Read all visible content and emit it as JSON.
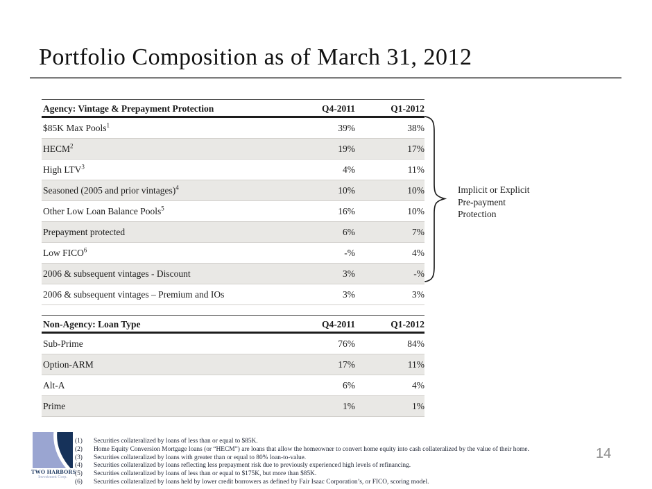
{
  "page": {
    "title": "Portfolio Composition as of March 31, 2012",
    "page_number": "14"
  },
  "tables": [
    {
      "title": "Agency: Vintage & Prepayment Protection",
      "col1": "Q4-2011",
      "col2": "Q1-2012",
      "rows": [
        {
          "label": "$85K Max Pools",
          "sup": "1",
          "q4": "39%",
          "q1": "38%"
        },
        {
          "label": "HECM",
          "sup": "2",
          "q4": "19%",
          "q1": "17%"
        },
        {
          "label": "High LTV",
          "sup": "3",
          "q4": "4%",
          "q1": "11%"
        },
        {
          "label": "Seasoned (2005 and prior vintages)",
          "sup": "4",
          "q4": "10%",
          "q1": "10%"
        },
        {
          "label": "Other Low Loan Balance Pools",
          "sup": "5",
          "q4": "16%",
          "q1": "10%"
        },
        {
          "label": "Prepayment protected",
          "sup": "",
          "q4": "6%",
          "q1": "7%"
        },
        {
          "label": "Low FICO",
          "sup": "6",
          "q4": "-%",
          "q1": "4%"
        },
        {
          "label": "2006 & subsequent vintages - Discount",
          "sup": "",
          "q4": "3%",
          "q1": "-%"
        },
        {
          "label": "2006 & subsequent vintages – Premium and IOs",
          "sup": "",
          "q4": "3%",
          "q1": "3%"
        }
      ]
    },
    {
      "title": "Non-Agency: Loan Type",
      "col1": "Q4-2011",
      "col2": "Q1-2012",
      "rows": [
        {
          "label": "Sub-Prime",
          "sup": "",
          "q4": "76%",
          "q1": "84%"
        },
        {
          "label": "Option-ARM",
          "sup": "",
          "q4": "17%",
          "q1": "11%"
        },
        {
          "label": "Alt-A",
          "sup": "",
          "q4": "6%",
          "q1": "4%"
        },
        {
          "label": "Prime",
          "sup": "",
          "q4": "1%",
          "q1": "1%"
        }
      ]
    }
  ],
  "annotation": {
    "lines": [
      "Implicit or Explicit",
      "Pre-payment",
      "Protection"
    ]
  },
  "footnotes": [
    {
      "num": "(1)",
      "text": "Securities collateralized by loans of less than or equal to $85K."
    },
    {
      "num": "(2)",
      "text": "Home Equity Conversion Mortgage loans (or “HECM”) are loans that allow the homeowner to convert home equity into cash collateralized by the value of their home."
    },
    {
      "num": "(3)",
      "text": "Securities collateralized by loans with greater than or equal to 80% loan-to-value."
    },
    {
      "num": "(4)",
      "text": "Securities collateralized by loans reflecting less prepayment risk due to previously experienced high levels of refinancing."
    },
    {
      "num": "(5)",
      "text": "Securities collateralized by loans of less than or equal to $175K, but more than $85K."
    },
    {
      "num": "(6)",
      "text": "Securities collateralized by loans held by lower credit borrowers as defined by Fair Isaac Corporation’s, or FICO, scoring model."
    }
  ],
  "logo": {
    "name": "TWO HARBORS",
    "subtitle": "Investment Corp."
  },
  "colors": {
    "navy": "#17335c",
    "light_blue": "#9aa5d1",
    "row_shade": "#e9e8e5",
    "rule_gray": "#7d7d7d",
    "page_number_gray": "#8f8f8f"
  }
}
